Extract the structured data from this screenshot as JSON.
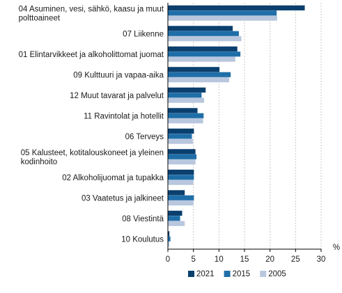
{
  "chart_data": {
    "type": "bar",
    "orientation": "horizontal",
    "categories": [
      [
        "04 Asuminen, vesi, sähkö, kaasu ja muut",
        "polttoaineet"
      ],
      [
        "07 Liikenne"
      ],
      [
        "01 Elintarvikkeet ja alkoholittomat juomat"
      ],
      [
        "09 Kulttuuri ja vapaa-aika"
      ],
      [
        "12 Muut tavarat ja palvelut"
      ],
      [
        "11 Ravintolat ja hotellit"
      ],
      [
        "06 Terveys"
      ],
      [
        "05 Kalusteet, kotitalouskoneet ja yleinen",
        "kodinhoito"
      ],
      [
        "02 Alkoholijuomat ja tupakka"
      ],
      [
        "03 Vaatetus ja jalkineet"
      ],
      [
        "08 Viestintä"
      ],
      [
        "10 Koulutus"
      ]
    ],
    "series": [
      {
        "name": "2021",
        "color": "#0a3f6e",
        "values": [
          26.8,
          12.7,
          13.6,
          10.1,
          7.4,
          5.8,
          5.1,
          5.4,
          5.1,
          3.3,
          2.8,
          0.3
        ]
      },
      {
        "name": "2015",
        "color": "#1f6ea8",
        "values": [
          21.3,
          13.9,
          14.2,
          12.3,
          6.6,
          7.0,
          4.7,
          5.6,
          5.1,
          5.1,
          2.4,
          0.5
        ]
      },
      {
        "name": "2005",
        "color": "#b8c7de",
        "values": [
          21.4,
          14.4,
          13.2,
          12.0,
          7.1,
          6.9,
          4.9,
          5.4,
          5.0,
          5.0,
          3.3,
          0.3
        ]
      }
    ],
    "x_ticks": [
      0,
      5,
      10,
      15,
      20,
      25,
      30
    ],
    "x_unit": "%",
    "xlim": [
      0,
      30
    ],
    "grid": true,
    "legend_position": "bottom"
  }
}
